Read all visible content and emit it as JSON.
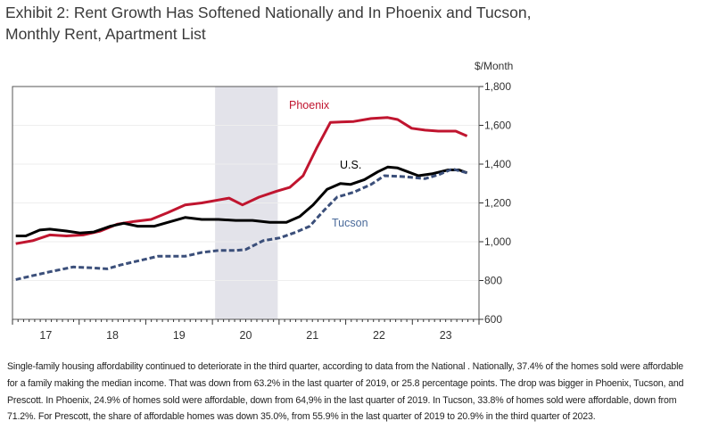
{
  "title_line1": "Exhibit 2: Rent Growth Has Softened Nationally and In Phoenix and Tucson,",
  "title_line2": "Monthly Rent, Apartment List",
  "paragraph": "Single-family housing affordability continued to deteriorate in the third quarter, according to data from the National . Nationally, 37.4% of the homes sold were affordable for a family making the median income. That was down from 63.2% in the last quarter of 2019, or 25.8 percentage points. The drop was bigger in Phoenix, Tucson, and Prescott. In Phoenix, 24.9% of homes sold were affordable, down from 64,9% in the last quarter of 2019. In Tucson, 33.8% of homes sold were affordable, down from 71.2%. For Prescott, the share of affordable homes was down 35.0%, from 55.9% in the last quarter of 2019 to 20.9% in the third quarter of 2023.",
  "chart_data": {
    "type": "line",
    "ylabel": "$/Month",
    "ylim": [
      600,
      1800
    ],
    "xlim": [
      2017,
      2024
    ],
    "yticks": [
      "600",
      "800",
      "1,000",
      "1,200",
      "1,400",
      "1,600",
      "1,800"
    ],
    "ytick_values": [
      600,
      800,
      1000,
      1200,
      1400,
      1600,
      1800
    ],
    "xticks": [
      "17",
      "18",
      "19",
      "20",
      "21",
      "22",
      "23"
    ],
    "y_axis_side": "right",
    "grid": true,
    "shaded_period": [
      2020.04,
      2020.98
    ],
    "series": [
      {
        "name": "Phoenix",
        "color": "#c0152f",
        "style": "solid",
        "x": [
          2017.05,
          2017.3,
          2017.56,
          2017.81,
          2018.06,
          2018.32,
          2018.57,
          2018.83,
          2019.08,
          2019.33,
          2019.59,
          2019.84,
          2020.09,
          2020.25,
          2020.45,
          2020.7,
          2020.96,
          2021.16,
          2021.36,
          2021.56,
          2021.77,
          2022.12,
          2022.38,
          2022.63,
          2022.78,
          2022.99,
          2023.19,
          2023.39,
          2023.65,
          2023.82
        ],
        "y": [
          990,
          1005,
          1035,
          1030,
          1035,
          1055,
          1090,
          1105,
          1115,
          1150,
          1190,
          1200,
          1215,
          1225,
          1190,
          1230,
          1260,
          1280,
          1340,
          1480,
          1615,
          1620,
          1635,
          1640,
          1630,
          1585,
          1575,
          1570,
          1570,
          1545
        ]
      },
      {
        "name": "U.S.",
        "color": "#000000",
        "style": "solid",
        "x": [
          2017.05,
          2017.2,
          2017.41,
          2017.56,
          2017.81,
          2018.01,
          2018.22,
          2018.47,
          2018.67,
          2018.88,
          2019.13,
          2019.33,
          2019.59,
          2019.84,
          2020.09,
          2020.35,
          2020.6,
          2020.86,
          2021.11,
          2021.31,
          2021.51,
          2021.72,
          2021.92,
          2022.07,
          2022.28,
          2022.48,
          2022.63,
          2022.78,
          2023.09,
          2023.29,
          2023.54,
          2023.7,
          2023.82
        ],
        "y": [
          1030,
          1030,
          1060,
          1065,
          1055,
          1045,
          1050,
          1080,
          1095,
          1080,
          1080,
          1100,
          1125,
          1115,
          1115,
          1110,
          1110,
          1100,
          1100,
          1130,
          1190,
          1270,
          1300,
          1295,
          1320,
          1360,
          1385,
          1380,
          1340,
          1350,
          1370,
          1370,
          1355
        ]
      },
      {
        "name": "Tucson",
        "color": "#3b4f7a",
        "style": "dashed",
        "x": [
          2017.05,
          2017.3,
          2017.56,
          2017.91,
          2018.22,
          2018.42,
          2018.62,
          2018.93,
          2019.18,
          2019.59,
          2019.84,
          2020.09,
          2020.35,
          2020.5,
          2020.76,
          2021.01,
          2021.26,
          2021.46,
          2021.67,
          2021.87,
          2022.12,
          2022.38,
          2022.58,
          2022.89,
          2023.19,
          2023.39,
          2023.6,
          2023.82
        ],
        "y": [
          805,
          825,
          845,
          870,
          865,
          860,
          880,
          905,
          925,
          925,
          945,
          955,
          955,
          960,
          1005,
          1020,
          1050,
          1080,
          1160,
          1230,
          1255,
          1295,
          1340,
          1335,
          1325,
          1345,
          1375,
          1355
        ]
      }
    ]
  }
}
